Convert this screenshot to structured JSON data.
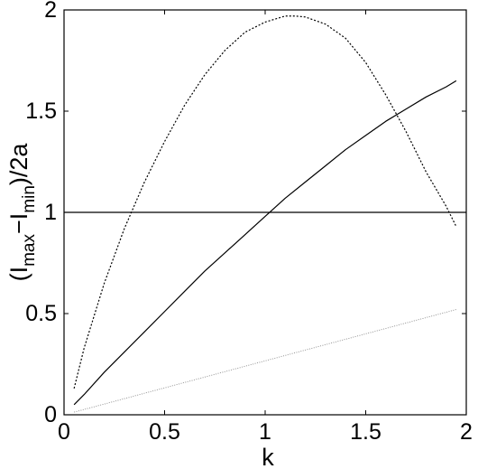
{
  "chart_data": {
    "type": "line",
    "xlabel": "k",
    "ylabel": {
      "open": "(I",
      "sub1": "max",
      "mid": "−I",
      "sub2": "min",
      "close": ")/2a"
    },
    "xlim": [
      0,
      2
    ],
    "ylim": [
      0,
      2
    ],
    "xticks": [
      "0",
      "0.5",
      "1",
      "1.5",
      "2"
    ],
    "yticks": [
      "0",
      "0.5",
      "1",
      "1.5",
      "2"
    ],
    "grid": false,
    "legend": "none",
    "series": [
      {
        "style": "dotted",
        "color": "#000000",
        "x": [
          0.05,
          0.1,
          0.2,
          0.3,
          0.4,
          0.5,
          0.6,
          0.7,
          0.8,
          0.9,
          1.0,
          1.1,
          1.15,
          1.2,
          1.3,
          1.4,
          1.5,
          1.6,
          1.7,
          1.8,
          1.9,
          1.95
        ],
        "y": [
          0.13,
          0.33,
          0.65,
          0.92,
          1.15,
          1.35,
          1.53,
          1.68,
          1.8,
          1.89,
          1.94,
          1.97,
          1.97,
          1.965,
          1.93,
          1.86,
          1.74,
          1.58,
          1.4,
          1.2,
          1.03,
          0.93
        ]
      },
      {
        "style": "solid",
        "color": "#000000",
        "x": [
          0.05,
          0.1,
          0.2,
          0.3,
          0.4,
          0.5,
          0.6,
          0.7,
          0.8,
          0.9,
          1.0,
          1.1,
          1.2,
          1.3,
          1.4,
          1.5,
          1.6,
          1.7,
          1.8,
          1.9,
          1.95
        ],
        "y": [
          0.05,
          0.1,
          0.21,
          0.31,
          0.41,
          0.51,
          0.61,
          0.71,
          0.8,
          0.89,
          0.98,
          1.07,
          1.15,
          1.23,
          1.31,
          1.38,
          1.45,
          1.51,
          1.57,
          1.62,
          1.65
        ]
      },
      {
        "style": "solid",
        "color": "#000000",
        "x": [
          0,
          2
        ],
        "y": [
          1,
          1
        ]
      },
      {
        "style": "dotted-fine",
        "color": "#888888",
        "x": [
          0.05,
          1.95
        ],
        "y": [
          0.013,
          0.52
        ]
      }
    ]
  }
}
